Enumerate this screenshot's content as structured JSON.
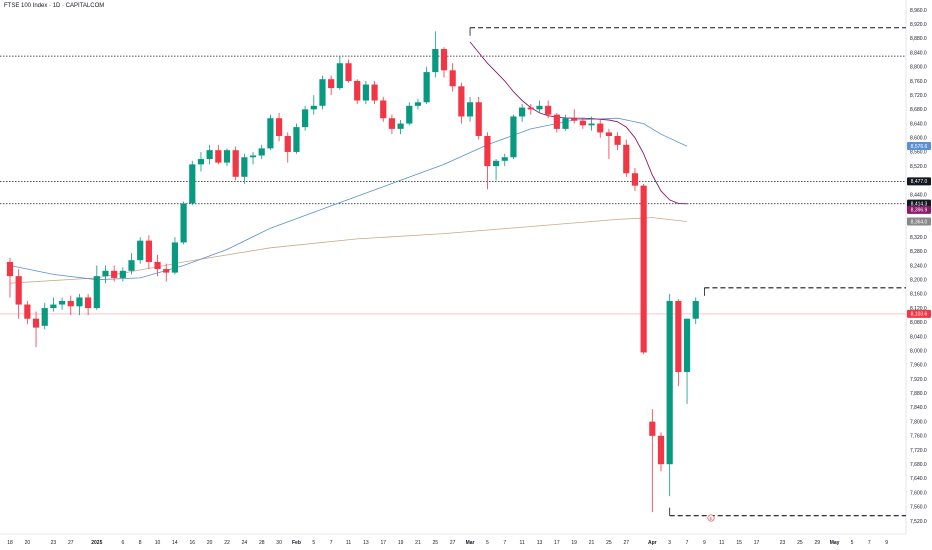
{
  "header": {
    "title": "FTSE 100 Index · 1D · CAPITALCOM"
  },
  "colors": {
    "up": "#089981",
    "down": "#f23645",
    "ma_short": "#8b1a6b",
    "ma_mid": "#5b8fd6",
    "ma_long": "#c9a98a",
    "price_line": "#f7a1a8",
    "badge_event": "#f23645"
  },
  "chart_data": {
    "type": "candlestick",
    "title": "FTSE 100 Index · 1D · CAPITALCOM",
    "ylim": [
      7500,
      8970
    ],
    "y_ticks": [
      7520,
      7560,
      7600,
      7640,
      7680,
      7720,
      7760,
      7800,
      7840,
      7880,
      7920,
      7960,
      8000,
      8040,
      8080,
      8120,
      8160,
      8200,
      8240,
      8280,
      8320,
      8360,
      8400,
      8440,
      8480,
      8520,
      8560,
      8600,
      8640,
      8680,
      8720,
      8760,
      8800,
      8840,
      8880,
      8920,
      8960
    ],
    "x_ticks": [
      {
        "label": "18",
        "i": 0
      },
      {
        "label": "20",
        "i": 2
      },
      {
        "label": "23",
        "i": 5
      },
      {
        "label": "27",
        "i": 7
      },
      {
        "label": "2025",
        "i": 10
      },
      {
        "label": "6",
        "i": 13
      },
      {
        "label": "8",
        "i": 15
      },
      {
        "label": "10",
        "i": 17
      },
      {
        "label": "14",
        "i": 19
      },
      {
        "label": "16",
        "i": 21
      },
      {
        "label": "20",
        "i": 23
      },
      {
        "label": "22",
        "i": 25
      },
      {
        "label": "24",
        "i": 27
      },
      {
        "label": "28",
        "i": 29
      },
      {
        "label": "30",
        "i": 31
      },
      {
        "label": "Feb",
        "i": 33
      },
      {
        "label": "5",
        "i": 35
      },
      {
        "label": "7",
        "i": 37
      },
      {
        "label": "11",
        "i": 39
      },
      {
        "label": "13",
        "i": 41
      },
      {
        "label": "17",
        "i": 43
      },
      {
        "label": "19",
        "i": 45
      },
      {
        "label": "21",
        "i": 47
      },
      {
        "label": "25",
        "i": 49
      },
      {
        "label": "27",
        "i": 51
      },
      {
        "label": "Mar",
        "i": 53
      },
      {
        "label": "5",
        "i": 55
      },
      {
        "label": "7",
        "i": 57
      },
      {
        "label": "11",
        "i": 59
      },
      {
        "label": "13",
        "i": 61
      },
      {
        "label": "17",
        "i": 63
      },
      {
        "label": "19",
        "i": 65
      },
      {
        "label": "21",
        "i": 67
      },
      {
        "label": "25",
        "i": 69
      },
      {
        "label": "27",
        "i": 71
      },
      {
        "label": "Apr",
        "i": 74
      },
      {
        "label": "3",
        "i": 76
      },
      {
        "label": "7",
        "i": 78
      },
      {
        "label": "9",
        "i": 80
      },
      {
        "label": "11",
        "i": 82
      },
      {
        "label": "15",
        "i": 84
      },
      {
        "label": "17",
        "i": 86
      },
      {
        "label": "23",
        "i": 89
      },
      {
        "label": "25",
        "i": 91
      },
      {
        "label": "29",
        "i": 93
      },
      {
        "label": "May",
        "i": 95
      },
      {
        "label": "5",
        "i": 97
      },
      {
        "label": "7",
        "i": 99
      },
      {
        "label": "9",
        "i": 101
      }
    ],
    "candles": [
      {
        "o": 8250,
        "h": 8262,
        "l": 8150,
        "c": 8210
      },
      {
        "o": 8210,
        "h": 8230,
        "l": 8090,
        "c": 8130
      },
      {
        "o": 8130,
        "h": 8140,
        "l": 8075,
        "c": 8090
      },
      {
        "o": 8090,
        "h": 8110,
        "l": 8010,
        "c": 8065
      },
      {
        "o": 8070,
        "h": 8135,
        "l": 8060,
        "c": 8120
      },
      {
        "o": 8120,
        "h": 8150,
        "l": 8110,
        "c": 8130
      },
      {
        "o": 8130,
        "h": 8150,
        "l": 8115,
        "c": 8140
      },
      {
        "o": 8140,
        "h": 8155,
        "l": 8100,
        "c": 8125
      },
      {
        "o": 8125,
        "h": 8160,
        "l": 8100,
        "c": 8150
      },
      {
        "o": 8150,
        "h": 8160,
        "l": 8100,
        "c": 8120
      },
      {
        "o": 8120,
        "h": 8240,
        "l": 8115,
        "c": 8210
      },
      {
        "o": 8210,
        "h": 8240,
        "l": 8190,
        "c": 8225
      },
      {
        "o": 8225,
        "h": 8240,
        "l": 8195,
        "c": 8205
      },
      {
        "o": 8205,
        "h": 8235,
        "l": 8195,
        "c": 8225
      },
      {
        "o": 8225,
        "h": 8275,
        "l": 8215,
        "c": 8255
      },
      {
        "o": 8255,
        "h": 8320,
        "l": 8245,
        "c": 8310
      },
      {
        "o": 8310,
        "h": 8325,
        "l": 8230,
        "c": 8250
      },
      {
        "o": 8250,
        "h": 8270,
        "l": 8210,
        "c": 8230
      },
      {
        "o": 8230,
        "h": 8245,
        "l": 8195,
        "c": 8220
      },
      {
        "o": 8220,
        "h": 8320,
        "l": 8215,
        "c": 8305
      },
      {
        "o": 8305,
        "h": 8420,
        "l": 8300,
        "c": 8415
      },
      {
        "o": 8415,
        "h": 8535,
        "l": 8410,
        "c": 8525
      },
      {
        "o": 8525,
        "h": 8560,
        "l": 8505,
        "c": 8540
      },
      {
        "o": 8540,
        "h": 8580,
        "l": 8525,
        "c": 8565
      },
      {
        "o": 8565,
        "h": 8580,
        "l": 8525,
        "c": 8530
      },
      {
        "o": 8530,
        "h": 8570,
        "l": 8520,
        "c": 8565
      },
      {
        "o": 8565,
        "h": 8575,
        "l": 8480,
        "c": 8490
      },
      {
        "o": 8490,
        "h": 8555,
        "l": 8470,
        "c": 8545
      },
      {
        "o": 8545,
        "h": 8560,
        "l": 8525,
        "c": 8550
      },
      {
        "o": 8550,
        "h": 8580,
        "l": 8540,
        "c": 8570
      },
      {
        "o": 8570,
        "h": 8665,
        "l": 8565,
        "c": 8655
      },
      {
        "o": 8655,
        "h": 8670,
        "l": 8590,
        "c": 8605
      },
      {
        "o": 8605,
        "h": 8615,
        "l": 8530,
        "c": 8560
      },
      {
        "o": 8560,
        "h": 8640,
        "l": 8555,
        "c": 8630
      },
      {
        "o": 8630,
        "h": 8690,
        "l": 8620,
        "c": 8680
      },
      {
        "o": 8680,
        "h": 8720,
        "l": 8665,
        "c": 8690
      },
      {
        "o": 8690,
        "h": 8775,
        "l": 8680,
        "c": 8765
      },
      {
        "o": 8765,
        "h": 8775,
        "l": 8720,
        "c": 8740
      },
      {
        "o": 8740,
        "h": 8830,
        "l": 8735,
        "c": 8810
      },
      {
        "o": 8810,
        "h": 8820,
        "l": 8755,
        "c": 8760
      },
      {
        "o": 8760,
        "h": 8765,
        "l": 8695,
        "c": 8705
      },
      {
        "o": 8705,
        "h": 8760,
        "l": 8695,
        "c": 8750
      },
      {
        "o": 8750,
        "h": 8760,
        "l": 8695,
        "c": 8705
      },
      {
        "o": 8705,
        "h": 8715,
        "l": 8645,
        "c": 8655
      },
      {
        "o": 8655,
        "h": 8665,
        "l": 8610,
        "c": 8625
      },
      {
        "o": 8625,
        "h": 8650,
        "l": 8610,
        "c": 8640
      },
      {
        "o": 8640,
        "h": 8700,
        "l": 8635,
        "c": 8690
      },
      {
        "o": 8690,
        "h": 8710,
        "l": 8680,
        "c": 8700
      },
      {
        "o": 8700,
        "h": 8800,
        "l": 8695,
        "c": 8785
      },
      {
        "o": 8785,
        "h": 8900,
        "l": 8770,
        "c": 8850
      },
      {
        "o": 8850,
        "h": 8855,
        "l": 8770,
        "c": 8790
      },
      {
        "o": 8790,
        "h": 8810,
        "l": 8730,
        "c": 8745
      },
      {
        "o": 8745,
        "h": 8755,
        "l": 8640,
        "c": 8660
      },
      {
        "o": 8660,
        "h": 8715,
        "l": 8645,
        "c": 8700
      },
      {
        "o": 8700,
        "h": 8715,
        "l": 8595,
        "c": 8605
      },
      {
        "o": 8605,
        "h": 8615,
        "l": 8455,
        "c": 8520
      },
      {
        "o": 8520,
        "h": 8540,
        "l": 8480,
        "c": 8535
      },
      {
        "o": 8535,
        "h": 8555,
        "l": 8520,
        "c": 8545
      },
      {
        "o": 8545,
        "h": 8665,
        "l": 8540,
        "c": 8660
      },
      {
        "o": 8660,
        "h": 8695,
        "l": 8645,
        "c": 8685
      },
      {
        "o": 8685,
        "h": 8695,
        "l": 8665,
        "c": 8680
      },
      {
        "o": 8680,
        "h": 8705,
        "l": 8670,
        "c": 8690
      },
      {
        "o": 8690,
        "h": 8705,
        "l": 8655,
        "c": 8665
      },
      {
        "o": 8665,
        "h": 8670,
        "l": 8615,
        "c": 8625
      },
      {
        "o": 8625,
        "h": 8665,
        "l": 8620,
        "c": 8655
      },
      {
        "o": 8655,
        "h": 8680,
        "l": 8640,
        "c": 8648
      },
      {
        "o": 8648,
        "h": 8655,
        "l": 8625,
        "c": 8635
      },
      {
        "o": 8635,
        "h": 8660,
        "l": 8620,
        "c": 8640
      },
      {
        "o": 8640,
        "h": 8650,
        "l": 8600,
        "c": 8615
      },
      {
        "o": 8615,
        "h": 8625,
        "l": 8540,
        "c": 8605
      },
      {
        "o": 8605,
        "h": 8615,
        "l": 8565,
        "c": 8580
      },
      {
        "o": 8580,
        "h": 8595,
        "l": 8490,
        "c": 8500
      },
      {
        "o": 8500,
        "h": 8515,
        "l": 8450,
        "c": 8465
      },
      {
        "o": 8465,
        "h": 8470,
        "l": 7990,
        "c": 7995
      },
      {
        "o": 7800,
        "h": 7835,
        "l": 7545,
        "c": 7760
      },
      {
        "o": 7760,
        "h": 7770,
        "l": 7660,
        "c": 7680
      },
      {
        "o": 7680,
        "h": 8160,
        "l": 7590,
        "c": 8140
      },
      {
        "o": 8140,
        "h": 8145,
        "l": 7900,
        "c": 7940
      },
      {
        "o": 7940,
        "h": 8090,
        "l": 7850,
        "c": 8090
      },
      {
        "o": 8090,
        "h": 8150,
        "l": 8075,
        "c": 8140
      }
    ],
    "ma_short": [
      {
        "i": 53,
        "v": 8870
      },
      {
        "i": 54,
        "v": 8840
      },
      {
        "i": 55,
        "v": 8810
      },
      {
        "i": 56,
        "v": 8785
      },
      {
        "i": 57,
        "v": 8760
      },
      {
        "i": 58,
        "v": 8730
      },
      {
        "i": 59,
        "v": 8705
      },
      {
        "i": 60,
        "v": 8685
      },
      {
        "i": 61,
        "v": 8670
      },
      {
        "i": 62,
        "v": 8662
      },
      {
        "i": 63,
        "v": 8658
      },
      {
        "i": 64,
        "v": 8656
      },
      {
        "i": 65,
        "v": 8655
      },
      {
        "i": 66,
        "v": 8655
      },
      {
        "i": 67,
        "v": 8654
      },
      {
        "i": 68,
        "v": 8652
      },
      {
        "i": 69,
        "v": 8650
      },
      {
        "i": 70,
        "v": 8645
      },
      {
        "i": 71,
        "v": 8630
      },
      {
        "i": 72,
        "v": 8600
      },
      {
        "i": 73,
        "v": 8555
      },
      {
        "i": 74,
        "v": 8495
      },
      {
        "i": 75,
        "v": 8450
      },
      {
        "i": 76,
        "v": 8425
      },
      {
        "i": 77,
        "v": 8415
      },
      {
        "i": 78,
        "v": 8414
      }
    ],
    "ma_mid": [
      {
        "i": 0,
        "v": 8240
      },
      {
        "i": 5,
        "v": 8215
      },
      {
        "i": 10,
        "v": 8200
      },
      {
        "i": 15,
        "v": 8205
      },
      {
        "i": 20,
        "v": 8240
      },
      {
        "i": 25,
        "v": 8285
      },
      {
        "i": 30,
        "v": 8345
      },
      {
        "i": 35,
        "v": 8390
      },
      {
        "i": 40,
        "v": 8435
      },
      {
        "i": 45,
        "v": 8480
      },
      {
        "i": 50,
        "v": 8525
      },
      {
        "i": 55,
        "v": 8580
      },
      {
        "i": 60,
        "v": 8625
      },
      {
        "i": 65,
        "v": 8650
      },
      {
        "i": 70,
        "v": 8655
      },
      {
        "i": 73,
        "v": 8640
      },
      {
        "i": 75,
        "v": 8610
      },
      {
        "i": 78,
        "v": 8576
      }
    ],
    "ma_long": [
      {
        "i": 0,
        "v": 8190
      },
      {
        "i": 10,
        "v": 8205
      },
      {
        "i": 20,
        "v": 8250
      },
      {
        "i": 30,
        "v": 8290
      },
      {
        "i": 40,
        "v": 8315
      },
      {
        "i": 50,
        "v": 8330
      },
      {
        "i": 60,
        "v": 8350
      },
      {
        "i": 70,
        "v": 8370
      },
      {
        "i": 74,
        "v": 8375
      },
      {
        "i": 78,
        "v": 8364
      }
    ],
    "hlines": [
      {
        "v": 8830,
        "style": "dotted",
        "from": "start"
      },
      {
        "v": 8477,
        "style": "dotted",
        "from": "start"
      },
      {
        "v": 8414,
        "style": "dotted",
        "from": "start"
      }
    ],
    "current_price": 8103.6,
    "levels": [
      {
        "v": 8910.0,
        "i_from": 53
      },
      {
        "v": 7535.0,
        "i_from": 76
      },
      {
        "v": 8177.0,
        "i_from": 80
      }
    ],
    "price_tags": [
      {
        "label": "8,576.6",
        "v": 8576.6,
        "color": "#5b8fd6"
      },
      {
        "label": "8,477.0",
        "v": 8477.0,
        "color": "#131722"
      },
      {
        "label": "8,414.3",
        "v": 8414.3,
        "color": "#131722"
      },
      {
        "label": "8,396.9",
        "v": 8396.9,
        "color": "#8b1a6b"
      },
      {
        "label": "8,364.0",
        "v": 8364.0,
        "color": "#888888"
      },
      {
        "label": "8,103.6",
        "v": 8103.6,
        "color": "#f23645"
      }
    ],
    "event_badge": {
      "label": "E",
      "i": 78
    }
  }
}
